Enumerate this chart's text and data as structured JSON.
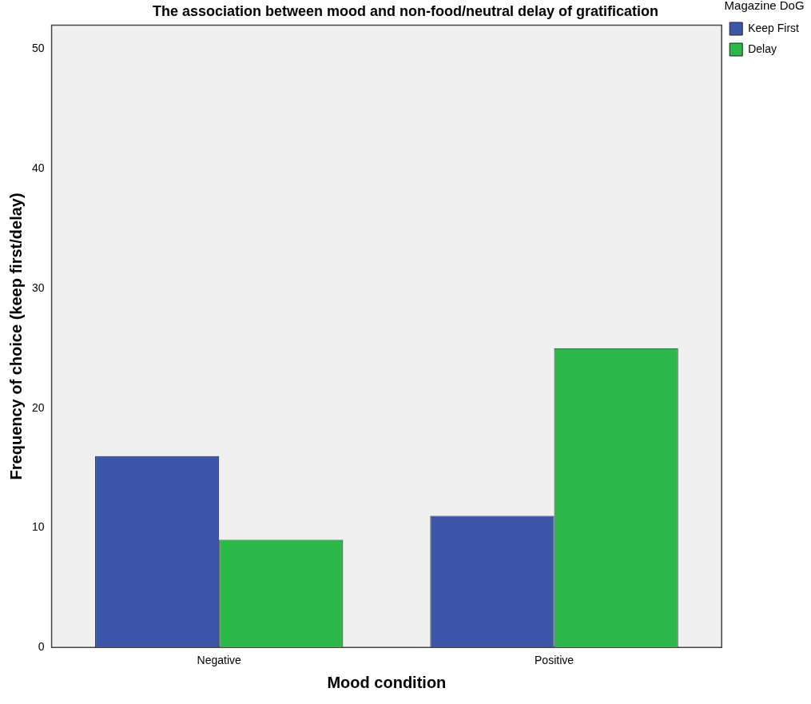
{
  "chart_data": {
    "type": "bar",
    "title": "The association between mood and non-food/neutral delay of gratification",
    "xlabel": "Mood condition",
    "ylabel": "Frequency of choice (keep first/delay)",
    "legend_title": "Magazine DoG",
    "categories": [
      "Negative",
      "Positive"
    ],
    "series": [
      {
        "name": "Keep First",
        "color": "#3c56a8",
        "values": [
          16,
          11
        ]
      },
      {
        "name": "Delay",
        "color": "#2db84a",
        "values": [
          9,
          25
        ]
      }
    ],
    "ylim": [
      0,
      52
    ],
    "yticks": [
      0,
      10,
      20,
      30,
      40,
      50
    ],
    "grid": false,
    "legend": "right"
  }
}
